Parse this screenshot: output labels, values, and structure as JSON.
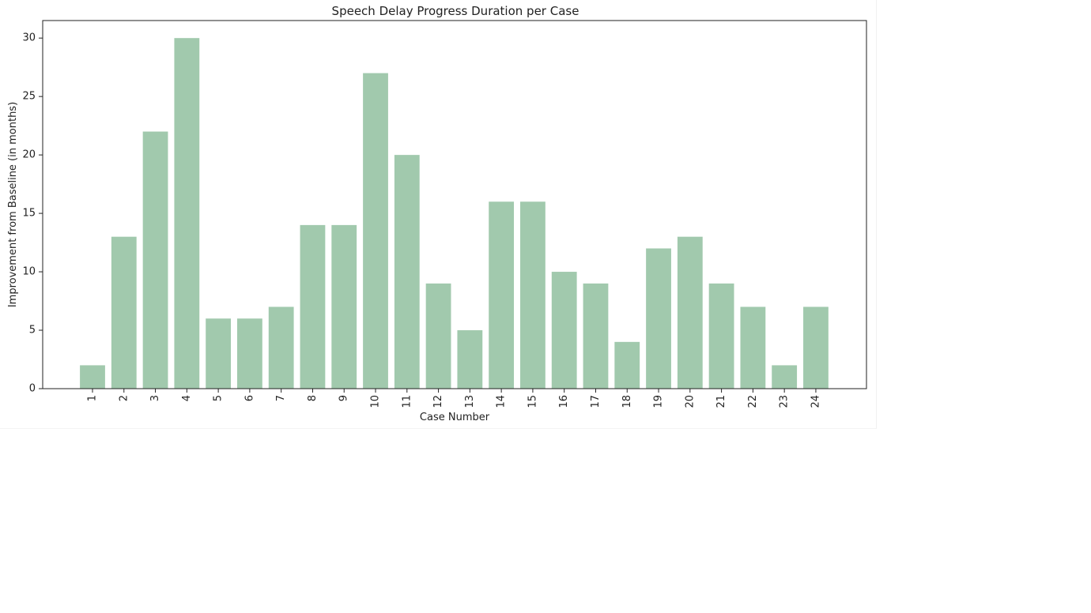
{
  "chart_data": {
    "type": "bar",
    "title": "Speech Delay Progress Duration per Case",
    "xlabel": "Case Number",
    "ylabel": "Improvement from Baseline (in months)",
    "categories": [
      "1",
      "2",
      "3",
      "4",
      "5",
      "6",
      "7",
      "8",
      "9",
      "10",
      "11",
      "12",
      "13",
      "14",
      "15",
      "16",
      "17",
      "18",
      "19",
      "20",
      "21",
      "22",
      "23",
      "24"
    ],
    "values": [
      2,
      13,
      22,
      30,
      6,
      6,
      7,
      14,
      14,
      27,
      20,
      9,
      5,
      16,
      16,
      10,
      9,
      4,
      12,
      13,
      9,
      7,
      2,
      7
    ],
    "ylim": [
      0,
      31.5
    ],
    "yticks": [
      0,
      5,
      10,
      15,
      20,
      25,
      30
    ],
    "xtick_rotation": "vertical",
    "grid": false,
    "bar_color": "#a1c9ad"
  }
}
